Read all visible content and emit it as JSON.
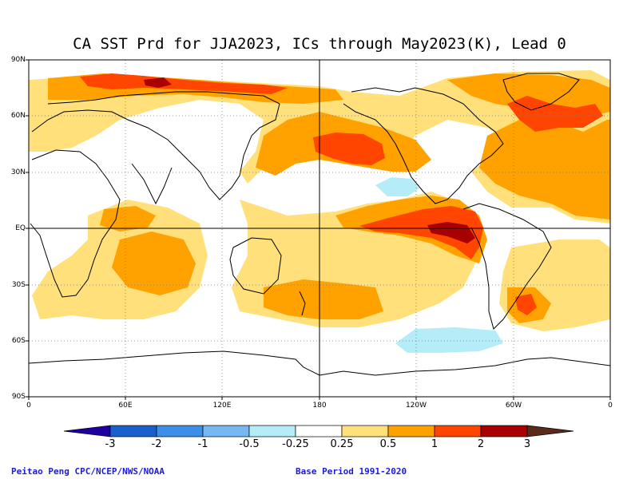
{
  "title": "CA SST Prd for JJA2023, ICs through May2023(K), Lead 0",
  "y_ticks": [
    "90N",
    "60N",
    "30N",
    "EQ",
    "30S",
    "60S",
    "90S"
  ],
  "x_ticks": [
    "0",
    "60E",
    "120E",
    "180",
    "120W",
    "60W",
    "0"
  ],
  "colorbar": {
    "labels": [
      "-3",
      "-2",
      "-1",
      "-0.5",
      "-0.25",
      "0.25",
      "0.5",
      "1",
      "2",
      "3"
    ],
    "colors": [
      "#1e00a0",
      "#1a5fce",
      "#3c8fe8",
      "#78b8f2",
      "#b4ecf8",
      "#ffffff",
      "#ffe07a",
      "#ffa200",
      "#ff4500",
      "#a80000",
      "#5a2a1a"
    ]
  },
  "footer": {
    "credit": "Peitao Peng CPC/NCEP/NWS/NOAA",
    "base_period": "Base Period 1991-2020"
  }
}
